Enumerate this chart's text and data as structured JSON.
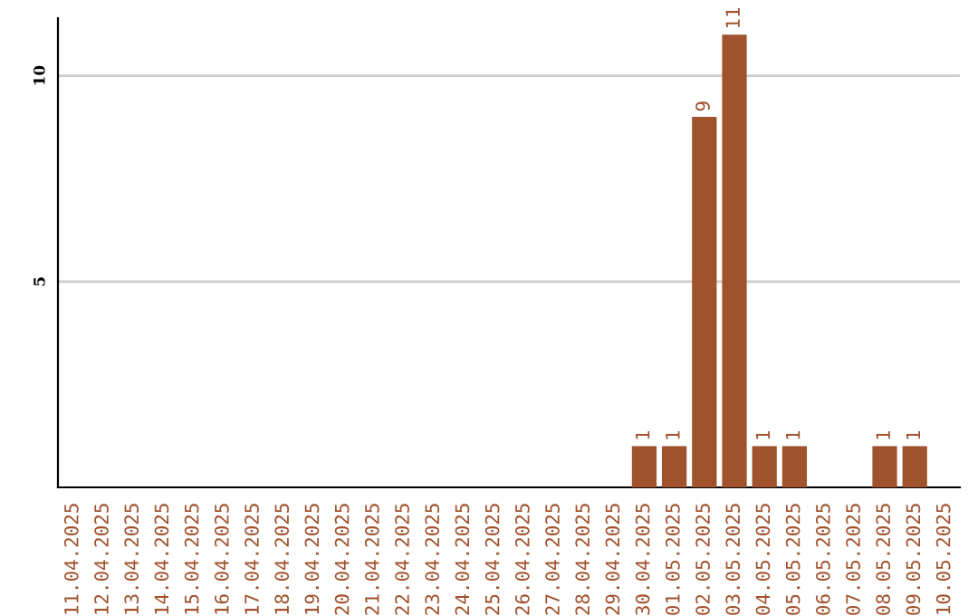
{
  "chart_data": {
    "type": "bar",
    "categories": [
      "11.04.2025",
      "12.04.2025",
      "13.04.2025",
      "14.04.2025",
      "15.04.2025",
      "16.04.2025",
      "17.04.2025",
      "18.04.2025",
      "19.04.2025",
      "20.04.2025",
      "21.04.2025",
      "22.04.2025",
      "23.04.2025",
      "24.04.2025",
      "25.04.2025",
      "26.04.2025",
      "27.04.2025",
      "28.04.2025",
      "29.04.2025",
      "30.04.2025",
      "01.05.2025",
      "02.05.2025",
      "03.05.2025",
      "04.05.2025",
      "05.05.2025",
      "06.05.2025",
      "07.05.2025",
      "08.05.2025",
      "09.05.2025",
      "10.05.2025"
    ],
    "values": [
      0,
      0,
      0,
      0,
      0,
      0,
      0,
      0,
      0,
      0,
      0,
      0,
      0,
      0,
      0,
      0,
      0,
      0,
      0,
      1,
      1,
      9,
      11,
      1,
      1,
      0,
      0,
      1,
      1,
      0
    ],
    "value_labels": [
      null,
      null,
      null,
      null,
      null,
      null,
      null,
      null,
      null,
      null,
      null,
      null,
      null,
      null,
      null,
      null,
      null,
      null,
      null,
      "1",
      "1",
      "9",
      "11",
      "1",
      "1",
      null,
      null,
      "1",
      "1",
      null
    ],
    "color": "#a0522d",
    "ylim": [
      0,
      11.4
    ],
    "yticks": [
      5,
      10
    ],
    "grid": "y"
  }
}
